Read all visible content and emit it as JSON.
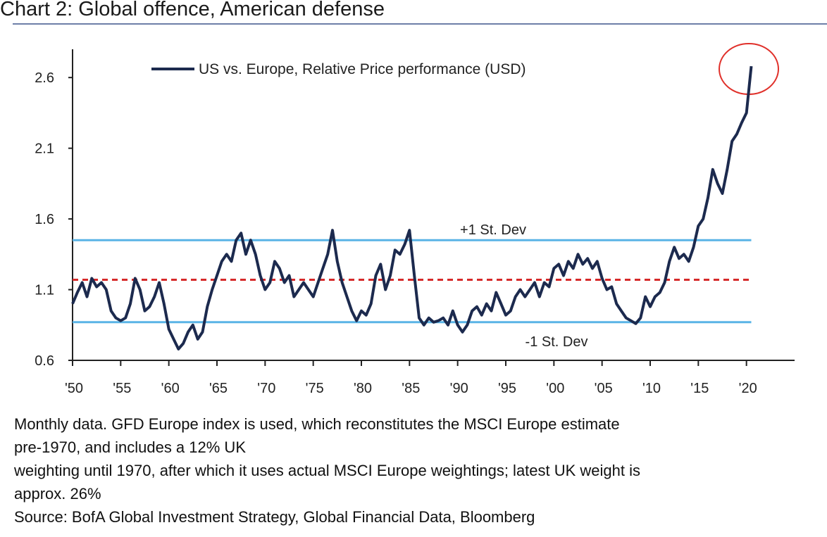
{
  "chart_data": {
    "type": "line",
    "title": "Chart 2: Global offence, American defense",
    "footnote": [
      "Monthly data. GFD Europe index is used, which reconstitutes the MSCI Europe estimate",
      "pre-1970, and includes a 12% UK",
      "weighting until 1970, after which it uses actual MSCI Europe weightings; latest UK weight is",
      "approx. 26%",
      "Source: BofA Global Investment Strategy, Global Financial Data, Bloomberg"
    ],
    "xlim": [
      1950,
      2025
    ],
    "xticks": [
      {
        "value": 1950,
        "label": "'50"
      },
      {
        "value": 1955,
        "label": "'55"
      },
      {
        "value": 1960,
        "label": "'60"
      },
      {
        "value": 1965,
        "label": "'65"
      },
      {
        "value": 1970,
        "label": "'70"
      },
      {
        "value": 1975,
        "label": "'75"
      },
      {
        "value": 1980,
        "label": "'80"
      },
      {
        "value": 1985,
        "label": "'85"
      },
      {
        "value": 1990,
        "label": "'90"
      },
      {
        "value": 1995,
        "label": "'95"
      },
      {
        "value": 2000,
        "label": "'00"
      },
      {
        "value": 2005,
        "label": "'05"
      },
      {
        "value": 2010,
        "label": "'10"
      },
      {
        "value": 2015,
        "label": "'15"
      },
      {
        "value": 2020,
        "label": "'20"
      }
    ],
    "ylim": [
      0.6,
      2.8
    ],
    "yticks": [
      0.6,
      1.1,
      1.6,
      2.1,
      2.6
    ],
    "legend": "top-left",
    "reference_lines": [
      {
        "value": 1.45,
        "label": "+1 St. Dev",
        "color": "#5ab4e6"
      },
      {
        "value": 1.17,
        "color": "#d62a2a",
        "dashed": true
      },
      {
        "value": 0.87,
        "label": "-1 St. Dev",
        "color": "#5ab4e6"
      }
    ],
    "x": [
      1950,
      1950.5,
      1951,
      1951.5,
      1952,
      1952.5,
      1953,
      1953.5,
      1954,
      1954.5,
      1955,
      1955.5,
      1956,
      1956.5,
      1957,
      1957.5,
      1958,
      1958.5,
      1959,
      1959.5,
      1960,
      1960.5,
      1961,
      1961.5,
      1962,
      1962.5,
      1963,
      1963.5,
      1964,
      1964.5,
      1965,
      1965.5,
      1966,
      1966.5,
      1967,
      1967.5,
      1968,
      1968.5,
      1969,
      1969.5,
      1970,
      1970.5,
      1971,
      1971.5,
      1972,
      1972.5,
      1973,
      1973.5,
      1974,
      1974.5,
      1975,
      1975.5,
      1976,
      1976.5,
      1977,
      1977.5,
      1978,
      1978.5,
      1979,
      1979.5,
      1980,
      1980.5,
      1981,
      1981.5,
      1982,
      1982.5,
      1983,
      1983.5,
      1984,
      1984.5,
      1985,
      1985.5,
      1986,
      1986.5,
      1987,
      1987.5,
      1988,
      1988.5,
      1989,
      1989.5,
      1990,
      1990.5,
      1991,
      1991.5,
      1992,
      1992.5,
      1993,
      1993.5,
      1994,
      1994.5,
      1995,
      1995.5,
      1996,
      1996.5,
      1997,
      1997.5,
      1998,
      1998.5,
      1999,
      1999.5,
      2000,
      2000.5,
      2001,
      2001.5,
      2002,
      2002.5,
      2003,
      2003.5,
      2004,
      2004.5,
      2005,
      2005.5,
      2006,
      2006.5,
      2007,
      2007.5,
      2008,
      2008.5,
      2009,
      2009.5,
      2010,
      2010.5,
      2011,
      2011.5,
      2012,
      2012.5,
      2013,
      2013.5,
      2014,
      2014.5,
      2015,
      2015.5,
      2016,
      2016.5,
      2017,
      2017.5,
      2018,
      2018.5,
      2019,
      2019.5,
      2020,
      2020.3,
      2020.5
    ],
    "series": [
      {
        "name": "US vs. Europe, Relative Price performance (USD)",
        "color": "#1c2a4e",
        "values": [
          1.0,
          1.08,
          1.15,
          1.05,
          1.18,
          1.12,
          1.15,
          1.1,
          0.95,
          0.9,
          0.88,
          0.9,
          1.0,
          1.18,
          1.1,
          0.95,
          0.98,
          1.05,
          1.15,
          1.0,
          0.82,
          0.75,
          0.68,
          0.72,
          0.8,
          0.85,
          0.75,
          0.8,
          0.98,
          1.1,
          1.2,
          1.3,
          1.35,
          1.3,
          1.45,
          1.5,
          1.35,
          1.45,
          1.35,
          1.2,
          1.1,
          1.15,
          1.3,
          1.25,
          1.15,
          1.2,
          1.05,
          1.1,
          1.15,
          1.1,
          1.05,
          1.15,
          1.25,
          1.35,
          1.52,
          1.3,
          1.15,
          1.05,
          0.95,
          0.88,
          0.95,
          0.92,
          1.0,
          1.2,
          1.28,
          1.1,
          1.2,
          1.38,
          1.35,
          1.42,
          1.52,
          1.2,
          0.9,
          0.85,
          0.9,
          0.87,
          0.88,
          0.9,
          0.85,
          0.95,
          0.85,
          0.8,
          0.85,
          0.95,
          0.98,
          0.92,
          1.0,
          0.95,
          1.08,
          1.0,
          0.92,
          0.95,
          1.05,
          1.1,
          1.05,
          1.1,
          1.15,
          1.05,
          1.15,
          1.12,
          1.25,
          1.28,
          1.2,
          1.3,
          1.25,
          1.35,
          1.28,
          1.32,
          1.25,
          1.3,
          1.18,
          1.1,
          1.12,
          1.0,
          0.95,
          0.9,
          0.88,
          0.86,
          0.9,
          1.05,
          0.98,
          1.05,
          1.08,
          1.15,
          1.3,
          1.4,
          1.32,
          1.35,
          1.3,
          1.4,
          1.55,
          1.6,
          1.75,
          1.95,
          1.85,
          1.78,
          1.95,
          2.15,
          2.2,
          2.28,
          2.35,
          2.55,
          2.68
        ]
      }
    ]
  }
}
